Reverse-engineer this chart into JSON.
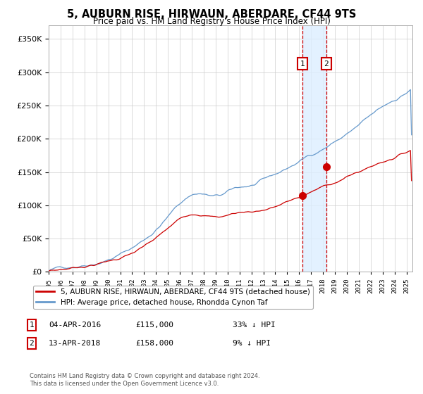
{
  "title": "5, AUBURN RISE, HIRWAUN, ABERDARE, CF44 9TS",
  "subtitle": "Price paid vs. HM Land Registry's House Price Index (HPI)",
  "background_color": "#ffffff",
  "plot_bg_color": "#ffffff",
  "grid_color": "#cccccc",
  "hpi_color": "#6699cc",
  "price_color": "#cc0000",
  "sale1_date_num": 2016.27,
  "sale1_price": 115000,
  "sale2_date_num": 2018.28,
  "sale2_price": 158000,
  "sale1_text": "04-APR-2016",
  "sale1_amount": "£115,000",
  "sale1_pct": "33% ↓ HPI",
  "sale2_text": "13-APR-2018",
  "sale2_amount": "£158,000",
  "sale2_pct": "9% ↓ HPI",
  "legend_label_price": "5, AUBURN RISE, HIRWAUN, ABERDARE, CF44 9TS (detached house)",
  "legend_label_hpi": "HPI: Average price, detached house, Rhondda Cynon Taf",
  "footer1": "Contains HM Land Registry data © Crown copyright and database right 2024.",
  "footer2": "This data is licensed under the Open Government Licence v3.0.",
  "ylim": [
    0,
    370000
  ],
  "xlim_start": 1995.0,
  "xlim_end": 2025.5
}
